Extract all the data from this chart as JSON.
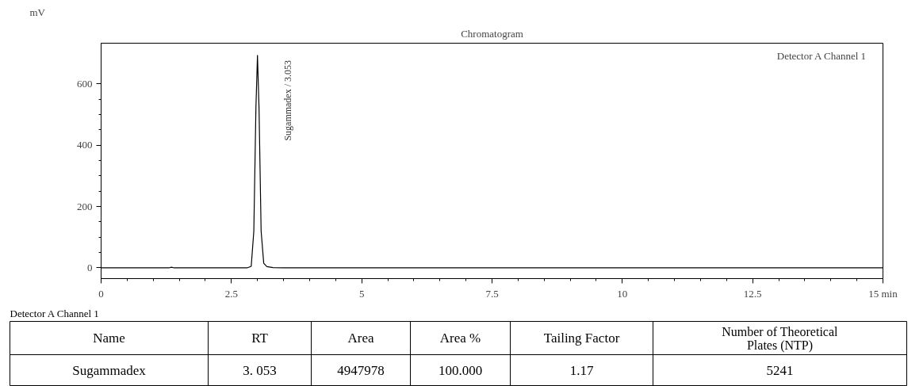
{
  "chart_data": {
    "type": "line",
    "title": "Chromatogram",
    "ylabel": "mV",
    "x": [
      0,
      1.3,
      1.35,
      1.4,
      2.8,
      2.88,
      2.93,
      2.97,
      3.0,
      3.03,
      3.07,
      3.12,
      3.18,
      3.3,
      3.5,
      15
    ],
    "series": [
      {
        "color": "#000000",
        "values": [
          0,
          0,
          2,
          0,
          0,
          5,
          120,
          520,
          693,
          520,
          120,
          15,
          4,
          1,
          0,
          0
        ]
      }
    ],
    "xlim": [
      0,
      15
    ],
    "xticks": [
      0,
      2.5,
      5,
      7.5,
      10,
      12.5,
      {
        "value": 15,
        "label": "15 min"
      }
    ],
    "ylim": [
      -35,
      733
    ],
    "yticks": [
      0,
      200,
      400,
      600
    ],
    "grid": false,
    "marker": "none",
    "line_style": "solid",
    "annotations": [
      {
        "text": "Sugammadex / 3.053",
        "x": 3.053,
        "y": 693
      },
      "Detector A Channel 1",
      "Detector A Channel 1",
      "Name",
      "RT",
      "Area",
      "Area %",
      "Tailing Factor",
      "Number of Theoretical Plates (NTP)",
      "Sugammadex",
      "3. 053",
      "4947978",
      "100.000",
      "1.17",
      "5241"
    ]
  }
}
